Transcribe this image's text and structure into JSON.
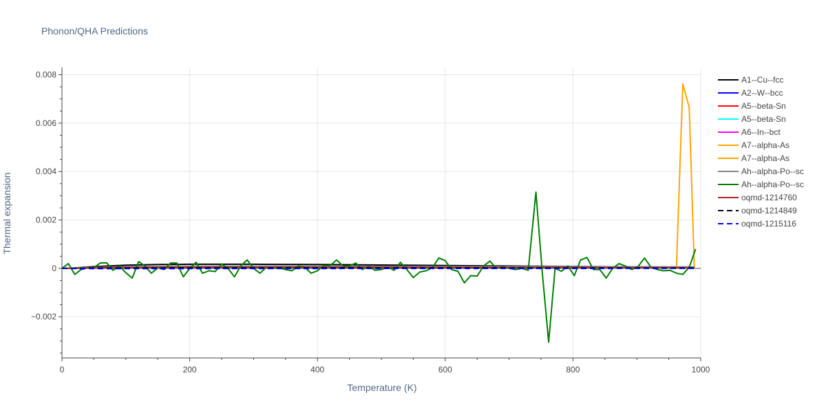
{
  "chart_data": {
    "type": "line",
    "title": "Phonon/QHA Predictions",
    "xlabel": "Temperature (K)",
    "ylabel": "Thermal expansion",
    "xlim": [
      0,
      1000
    ],
    "ylim": [
      -0.0037,
      0.0083
    ],
    "x_ticks": [
      0,
      200,
      400,
      600,
      800,
      1000
    ],
    "x_tick_labels": [
      "0",
      "200",
      "400",
      "600",
      "800",
      "1000"
    ],
    "y_ticks": [
      -0.002,
      0,
      0.002,
      0.004,
      0.006,
      0.008
    ],
    "y_tick_labels": [
      "−0.002",
      "0",
      "0.002",
      "0.004",
      "0.006",
      "0.008"
    ],
    "grid": true,
    "legend_position": "right",
    "series": [
      {
        "name": "A1--Cu--fcc",
        "color": "#000000",
        "dash": "solid",
        "x": [
          0,
          20,
          50,
          100,
          150,
          200,
          250,
          300,
          350,
          400,
          500,
          600,
          700,
          800,
          900,
          990
        ],
        "y": [
          0,
          2e-05,
          7e-05,
          0.00013,
          0.00016,
          0.00017,
          0.00017,
          0.00017,
          0.000165,
          0.00016,
          0.00014,
          0.00012,
          0.0001,
          8e-05,
          6e-05,
          4e-05
        ]
      },
      {
        "name": "A2--W--bcc",
        "color": "#0000ff",
        "dash": "solid",
        "x": [
          0,
          20,
          50,
          100,
          200,
          300,
          400,
          500,
          600,
          700,
          800,
          900,
          990
        ],
        "y": [
          0,
          5e-06,
          2e-05,
          4e-05,
          5e-05,
          5e-05,
          5e-05,
          4.5e-05,
          4e-05,
          3.5e-05,
          3e-05,
          2.8e-05,
          2.5e-05
        ]
      },
      {
        "name": "A5--beta-Sn",
        "color": "#ff0000",
        "dash": "solid",
        "x": [
          0,
          20,
          50,
          100,
          200,
          300,
          400,
          500,
          600,
          700,
          800,
          900,
          990
        ],
        "y": [
          0,
          8e-06,
          3e-05,
          5e-05,
          6e-05,
          6e-05,
          5.8e-05,
          5.5e-05,
          5e-05,
          4.5e-05,
          4e-05,
          3.5e-05,
          3e-05
        ]
      },
      {
        "name": "A5--beta-Sn",
        "color": "#00ffff",
        "dash": "solid",
        "x": [
          0,
          20,
          50,
          100,
          200,
          300,
          400,
          500,
          600,
          700,
          800,
          900,
          990
        ],
        "y": [
          0,
          6e-06,
          2.5e-05,
          4.5e-05,
          5.5e-05,
          5.5e-05,
          5.3e-05,
          5e-05,
          4.5e-05,
          4e-05,
          3.6e-05,
          3.2e-05,
          2.8e-05
        ]
      },
      {
        "name": "A6--In--bct",
        "color": "#ff00ff",
        "dash": "solid",
        "x": [
          0,
          20,
          50,
          100,
          200,
          300,
          400,
          500,
          600,
          700,
          800,
          900,
          990
        ],
        "y": [
          0,
          7e-06,
          2.8e-05,
          5e-05,
          6.2e-05,
          6.2e-05,
          6e-05,
          5.6e-05,
          5.2e-05,
          4.7e-05,
          4.2e-05,
          3.8e-05,
          3.4e-05
        ]
      },
      {
        "name": "A7--alpha-As",
        "color": "#ffa500",
        "dash": "solid",
        "x": [
          0,
          20,
          50,
          100,
          200,
          300,
          400,
          500,
          600,
          700,
          800,
          900,
          990
        ],
        "y": [
          0,
          5e-06,
          2e-05,
          4e-05,
          5e-05,
          5e-05,
          5e-05,
          4.8e-05,
          4.5e-05,
          4e-05,
          3.6e-05,
          3.2e-05,
          3e-05
        ]
      },
      {
        "name": "A7--alpha-As",
        "color": "#ffa500",
        "dash": "solid",
        "x": [
          0,
          20,
          50,
          100,
          200,
          300,
          400,
          500,
          600,
          700,
          800,
          900,
          950,
          962,
          972,
          982,
          990
        ],
        "y": [
          0,
          6e-06,
          2.2e-05,
          4.2e-05,
          5.2e-05,
          5.2e-05,
          5e-05,
          4.8e-05,
          4.5e-05,
          4e-05,
          3.6e-05,
          3.2e-05,
          3e-05,
          3e-05,
          0.00762,
          0.00665,
          3e-05
        ]
      },
      {
        "name": "Ah--alpha-Po--sc",
        "color": "#808080",
        "dash": "solid",
        "x": [
          0,
          20,
          50,
          100,
          200,
          300,
          400,
          500,
          600,
          700,
          800,
          900,
          990
        ],
        "y": [
          0,
          1e-05,
          4e-05,
          7e-05,
          9e-05,
          9e-05,
          8.8e-05,
          8.5e-05,
          8e-05,
          7.5e-05,
          7e-05,
          6.5e-05,
          6e-05
        ]
      },
      {
        "name": "Ah--alpha-Po--sc",
        "color": "#008000",
        "dash": "solid",
        "x": [
          0,
          10,
          20,
          30,
          40,
          50,
          60,
          70,
          80,
          90,
          100,
          110,
          120,
          130,
          140,
          150,
          160,
          170,
          180,
          190,
          200,
          210,
          220,
          230,
          240,
          250,
          260,
          270,
          280,
          290,
          300,
          310,
          320,
          330,
          340,
          350,
          360,
          370,
          380,
          390,
          400,
          410,
          420,
          430,
          440,
          450,
          460,
          470,
          480,
          490,
          500,
          510,
          520,
          530,
          540,
          550,
          560,
          570,
          580,
          590,
          600,
          610,
          620,
          630,
          640,
          650,
          660,
          670,
          680,
          690,
          700,
          710,
          720,
          730,
          742,
          752,
          762,
          772,
          782,
          792,
          802,
          812,
          822,
          832,
          842,
          852,
          862,
          872,
          882,
          892,
          902,
          912,
          922,
          932,
          942,
          952,
          962,
          972,
          982,
          992
        ],
        "y": [
          0,
          0.0002,
          -0.00025,
          -5e-05,
          2e-05,
          3e-05,
          0.00022,
          0.00023,
          -8e-05,
          0.0001,
          -0.00018,
          -0.0004,
          0.00028,
          0.0001,
          -0.0002,
          2e-05,
          -5e-05,
          0.00022,
          0.00022,
          -0.00035,
          0.0,
          0.00025,
          -0.0002,
          -0.0001,
          -0.00013,
          0.00018,
          0.0,
          -0.00035,
          0.0001,
          0.00035,
          0.0,
          -0.0002,
          5e-05,
          0.0,
          2e-05,
          -5e-05,
          -0.0001,
          0.0001,
          5e-05,
          -0.0002,
          -0.0001,
          0.00012,
          0.00012,
          0.00035,
          0.0001,
          0.0001,
          0.00022,
          -5e-05,
          8e-05,
          -8e-05,
          -5e-05,
          5e-05,
          -8e-05,
          0.00025,
          -5e-05,
          -0.00038,
          -0.00015,
          -0.0001,
          3e-05,
          0.00043,
          0.00032,
          -5e-05,
          -0.00012,
          -0.0006,
          -0.0003,
          -0.00032,
          0.0001,
          0.0003,
          0.0,
          8e-05,
          0.0,
          -5e-05,
          0.0,
          -8e-05,
          0.00315,
          -0.0002,
          -0.00305,
          0.0,
          -0.00012,
          0.0001,
          -0.0003,
          0.00035,
          0.00045,
          -5e-05,
          -5e-05,
          -0.0004,
          0.0,
          0.0002,
          0.0001,
          -5e-05,
          8e-05,
          0.00043,
          5e-05,
          -5e-05,
          -0.0001,
          -8e-05,
          -0.0002,
          -0.00025,
          5e-05,
          0.0008
        ]
      },
      {
        "name": "oqmd-1214760",
        "color": "#b22222",
        "dash": "solid",
        "x": [
          0,
          20,
          50,
          100,
          200,
          300,
          400,
          500,
          600,
          700,
          800,
          900,
          990
        ],
        "y": [
          0,
          4e-06,
          1.5e-05,
          3e-05,
          4e-05,
          4e-05,
          4e-05,
          3.8e-05,
          3.6e-05,
          3.3e-05,
          3e-05,
          2.8e-05,
          2.6e-05
        ]
      },
      {
        "name": "oqmd-1214849",
        "color": "#000000",
        "dash": "dashed",
        "x": [
          0,
          20,
          50,
          100,
          200,
          300,
          400,
          500,
          600,
          700,
          800,
          900,
          990
        ],
        "y": [
          0,
          3e-06,
          1e-05,
          2e-05,
          2.5e-05,
          2.5e-05,
          2.4e-05,
          2.3e-05,
          2.2e-05,
          2e-05,
          1.9e-05,
          1.8e-05,
          1.7e-05
        ]
      },
      {
        "name": "oqmd-1215116",
        "color": "#0000ff",
        "dash": "dashed",
        "x": [
          0,
          20,
          50,
          100,
          200,
          300,
          400,
          500,
          600,
          700,
          800,
          900,
          990
        ],
        "y": [
          0,
          -5e-06,
          -1e-05,
          -1e-05,
          -8e-06,
          -6e-06,
          -5e-06,
          -4e-06,
          -3e-06,
          -2e-06,
          -2e-06,
          -1e-06,
          -1e-06
        ]
      }
    ]
  }
}
